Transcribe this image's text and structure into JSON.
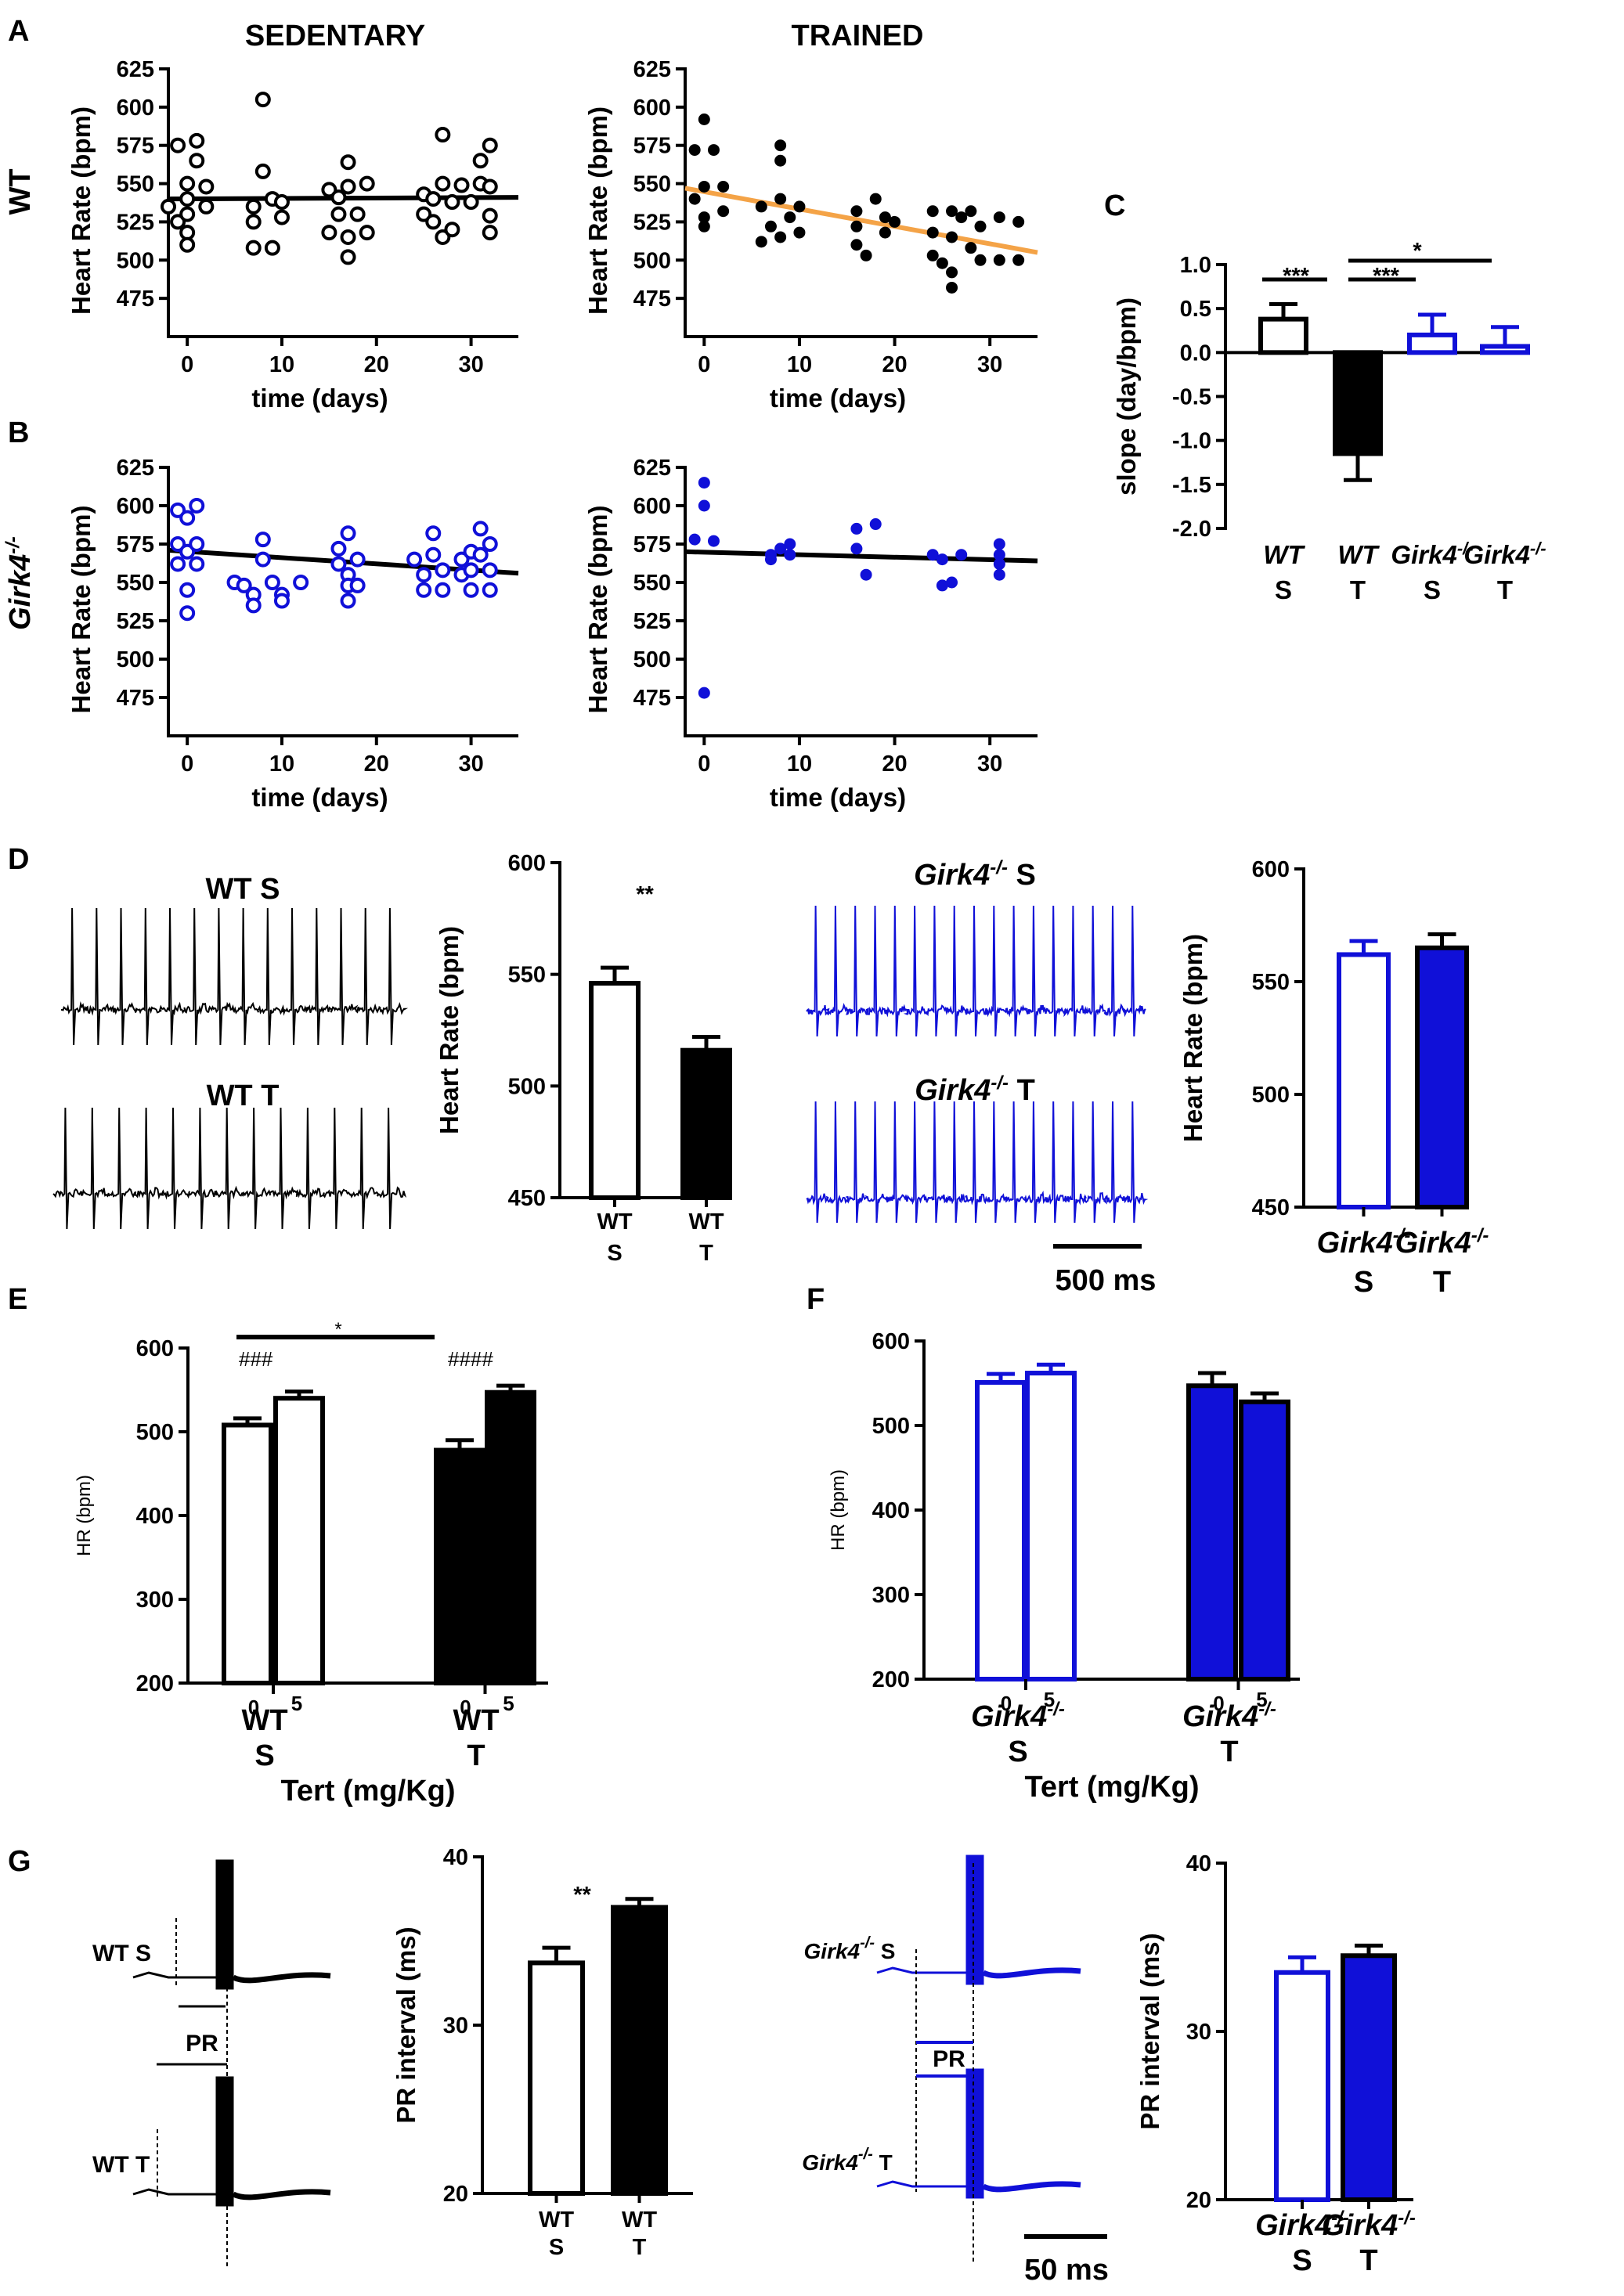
{
  "colors": {
    "black": "#000000",
    "blue": "#1010d8",
    "orange": "#f4a347",
    "white": "#ffffff"
  },
  "panel_labels": [
    "A",
    "B",
    "C",
    "D",
    "E",
    "F",
    "G"
  ],
  "titles": {
    "sedentary": "SEDENTARY",
    "trained": "TRAINED"
  },
  "row_labels": {
    "wt": "WT",
    "girk": "Girk4",
    "girk_sup": "-/-"
  },
  "scatter_ylabel": "Heart Rate (bpm)",
  "scatter_xlabel": "time (days)",
  "hr_label": "Heart Rate (bpm)",
  "slope_label": "slope (day/bpm)",
  "hr_short_label": "HR (bpm)",
  "pr_label": "PR interval (ms)",
  "tert_label": "Tert (mg/Kg)",
  "trace_labels": {
    "wt_s": "WT S",
    "wt_t": "WT T",
    "girk_s": "S",
    "girk_t": "T",
    "pr": "PR"
  },
  "scalebars": {
    "d": "500 ms",
    "g": "50 ms"
  },
  "chart_data": [
    {
      "id": "A-sed",
      "type": "scatter",
      "title": "SEDENTARY",
      "xlabel": "time (days)",
      "ylabel": "Heart Rate (bpm)",
      "xlim": [
        -2,
        35
      ],
      "ylim": [
        450,
        625
      ],
      "xticks": [
        0,
        10,
        20,
        30
      ],
      "yticks": [
        475,
        500,
        525,
        550,
        575,
        600,
        625
      ],
      "marker": "open",
      "color": "#000000",
      "fit": {
        "y0": 540,
        "y1": 541,
        "color": "#000000"
      },
      "points": [
        [
          -2,
          535
        ],
        [
          -1,
          575
        ],
        [
          -1,
          525
        ],
        [
          0,
          550
        ],
        [
          0,
          540
        ],
        [
          0,
          530
        ],
        [
          0,
          518
        ],
        [
          0,
          510
        ],
        [
          1,
          578
        ],
        [
          1,
          565
        ],
        [
          2,
          548
        ],
        [
          2,
          535
        ],
        [
          7,
          535
        ],
        [
          7,
          525
        ],
        [
          7,
          508
        ],
        [
          8,
          605
        ],
        [
          8,
          558
        ],
        [
          9,
          540
        ],
        [
          9,
          508
        ],
        [
          10,
          538
        ],
        [
          10,
          528
        ],
        [
          15,
          546
        ],
        [
          15,
          518
        ],
        [
          16,
          541
        ],
        [
          16,
          530
        ],
        [
          17,
          564
        ],
        [
          17,
          548
        ],
        [
          17,
          515
        ],
        [
          17,
          502
        ],
        [
          18,
          530
        ],
        [
          19,
          550
        ],
        [
          19,
          518
        ],
        [
          25,
          543
        ],
        [
          25,
          530
        ],
        [
          26,
          540
        ],
        [
          26,
          525
        ],
        [
          27,
          582
        ],
        [
          27,
          550
        ],
        [
          27,
          515
        ],
        [
          28,
          538
        ],
        [
          28,
          520
        ],
        [
          29,
          549
        ],
        [
          30,
          538
        ],
        [
          31,
          565
        ],
        [
          31,
          550
        ],
        [
          32,
          575
        ],
        [
          32,
          548
        ],
        [
          32,
          529
        ],
        [
          32,
          518
        ]
      ]
    },
    {
      "id": "A-trn",
      "type": "scatter",
      "title": "TRAINED",
      "xlabel": "time (days)",
      "ylabel": "Heart Rate (bpm)",
      "xlim": [
        -2,
        35
      ],
      "ylim": [
        450,
        625
      ],
      "xticks": [
        0,
        10,
        20,
        30
      ],
      "yticks": [
        475,
        500,
        525,
        550,
        575,
        600,
        625
      ],
      "marker": "filled",
      "color": "#000000",
      "fit": {
        "y0": 547,
        "y1": 505,
        "color": "#f4a347"
      },
      "points": [
        [
          -1,
          540
        ],
        [
          -1,
          572
        ],
        [
          0,
          592
        ],
        [
          0,
          548
        ],
        [
          0,
          528
        ],
        [
          0,
          522
        ],
        [
          1,
          572
        ],
        [
          2,
          548
        ],
        [
          2,
          532
        ],
        [
          6,
          535
        ],
        [
          6,
          512
        ],
        [
          7,
          522
        ],
        [
          8,
          575
        ],
        [
          8,
          565
        ],
        [
          8,
          540
        ],
        [
          8,
          515
        ],
        [
          9,
          528
        ],
        [
          10,
          535
        ],
        [
          10,
          518
        ],
        [
          16,
          532
        ],
        [
          16,
          522
        ],
        [
          16,
          510
        ],
        [
          17,
          503
        ],
        [
          18,
          540
        ],
        [
          19,
          528
        ],
        [
          19,
          518
        ],
        [
          20,
          525
        ],
        [
          24,
          532
        ],
        [
          24,
          518
        ],
        [
          24,
          503
        ],
        [
          25,
          498
        ],
        [
          26,
          532
        ],
        [
          26,
          515
        ],
        [
          26,
          492
        ],
        [
          26,
          482
        ],
        [
          27,
          528
        ],
        [
          28,
          532
        ],
        [
          28,
          508
        ],
        [
          29,
          522
        ],
        [
          29,
          500
        ],
        [
          31,
          528
        ],
        [
          31,
          500
        ],
        [
          33,
          525
        ],
        [
          33,
          500
        ]
      ]
    },
    {
      "id": "B-sed",
      "type": "scatter",
      "xlabel": "time (days)",
      "ylabel": "Heart Rate (bpm)",
      "xlim": [
        -2,
        35
      ],
      "ylim": [
        450,
        625
      ],
      "xticks": [
        0,
        10,
        20,
        30
      ],
      "yticks": [
        475,
        500,
        525,
        550,
        575,
        600,
        625
      ],
      "marker": "open",
      "color": "#1010d8",
      "fit": {
        "y0": 571,
        "y1": 556,
        "color": "#000000"
      },
      "points": [
        [
          -1,
          597
        ],
        [
          -1,
          575
        ],
        [
          -1,
          562
        ],
        [
          0,
          592
        ],
        [
          0,
          570
        ],
        [
          0,
          545
        ],
        [
          0,
          530
        ],
        [
          1,
          600
        ],
        [
          1,
          575
        ],
        [
          1,
          562
        ],
        [
          5,
          550
        ],
        [
          6,
          548
        ],
        [
          7,
          542
        ],
        [
          7,
          535
        ],
        [
          8,
          578
        ],
        [
          8,
          565
        ],
        [
          9,
          550
        ],
        [
          10,
          542
        ],
        [
          10,
          538
        ],
        [
          12,
          550
        ],
        [
          16,
          572
        ],
        [
          16,
          562
        ],
        [
          17,
          582
        ],
        [
          17,
          555
        ],
        [
          17,
          548
        ],
        [
          17,
          538
        ],
        [
          18,
          565
        ],
        [
          18,
          548
        ],
        [
          24,
          565
        ],
        [
          25,
          555
        ],
        [
          25,
          545
        ],
        [
          26,
          582
        ],
        [
          26,
          568
        ],
        [
          27,
          558
        ],
        [
          27,
          545
        ],
        [
          29,
          565
        ],
        [
          29,
          555
        ],
        [
          30,
          570
        ],
        [
          30,
          558
        ],
        [
          30,
          545
        ],
        [
          31,
          585
        ],
        [
          31,
          568
        ],
        [
          32,
          575
        ],
        [
          32,
          558
        ],
        [
          32,
          545
        ]
      ]
    },
    {
      "id": "B-trn",
      "type": "scatter",
      "xlabel": "time (days)",
      "ylabel": "Heart Rate (bpm)",
      "xlim": [
        -2,
        35
      ],
      "ylim": [
        450,
        625
      ],
      "xticks": [
        0,
        10,
        20,
        30
      ],
      "yticks": [
        475,
        500,
        525,
        550,
        575,
        600,
        625
      ],
      "marker": "filled",
      "color": "#1010d8",
      "fit": {
        "y0": 570,
        "y1": 564,
        "color": "#000000"
      },
      "points": [
        [
          -1,
          578
        ],
        [
          0,
          615
        ],
        [
          0,
          600
        ],
        [
          0,
          478
        ],
        [
          1,
          577
        ],
        [
          7,
          568
        ],
        [
          7,
          565
        ],
        [
          8,
          572
        ],
        [
          9,
          575
        ],
        [
          9,
          568
        ],
        [
          16,
          585
        ],
        [
          16,
          572
        ],
        [
          17,
          555
        ],
        [
          18,
          588
        ],
        [
          24,
          568
        ],
        [
          25,
          548
        ],
        [
          25,
          565
        ],
        [
          26,
          550
        ],
        [
          27,
          568
        ],
        [
          31,
          575
        ],
        [
          31,
          568
        ],
        [
          31,
          562
        ],
        [
          31,
          555
        ]
      ]
    },
    {
      "id": "C",
      "type": "bar",
      "ylabel": "slope (day/bpm)",
      "ylim": [
        -2.0,
        1.0
      ],
      "yticks": [
        1.0,
        0.5,
        0.0,
        -0.5,
        -1.0,
        -1.5,
        -2.0
      ],
      "categories": [
        [
          "WT",
          "S"
        ],
        [
          "WT",
          "T"
        ],
        [
          "Girk4",
          "S"
        ],
        [
          "Girk4",
          "T"
        ]
      ],
      "values": [
        0.38,
        -1.15,
        0.2,
        0.07
      ],
      "errors": [
        0.17,
        0.3,
        0.23,
        0.22
      ],
      "fills": [
        "#ffffff",
        "#000000",
        "#ffffff",
        "#ffffff"
      ],
      "strokes": [
        "#000000",
        "#000000",
        "#1010d8",
        "#1010d8"
      ],
      "significance": [
        {
          "from": 0,
          "to": 1,
          "label": "***"
        },
        {
          "from": 1,
          "to": 2,
          "label": "***"
        },
        {
          "from": 1,
          "to": 3,
          "label": "*"
        }
      ]
    },
    {
      "id": "D-wt",
      "type": "bar",
      "ylabel": "Heart Rate (bpm)",
      "ylim": [
        450,
        600
      ],
      "yticks": [
        450,
        500,
        550,
        600
      ],
      "categories": [
        [
          "WT",
          "S"
        ],
        [
          "WT",
          "T"
        ]
      ],
      "values": [
        546,
        516
      ],
      "errors": [
        7,
        6
      ],
      "fills": [
        "#ffffff",
        "#000000"
      ],
      "strokes": [
        "#000000",
        "#000000"
      ],
      "annotation": "**"
    },
    {
      "id": "D-girk",
      "type": "bar",
      "ylabel": "Heart Rate (bpm)",
      "ylim": [
        450,
        600
      ],
      "yticks": [
        450,
        500,
        550,
        600
      ],
      "categories": [
        [
          "Girk4",
          "S"
        ],
        [
          "Girk4",
          "T"
        ]
      ],
      "values": [
        562,
        565
      ],
      "errors": [
        6,
        6
      ],
      "fills": [
        "#ffffff",
        "#1010d8"
      ],
      "strokes": [
        "#1010d8",
        "#000000"
      ]
    },
    {
      "id": "E",
      "type": "bar",
      "ylabel": "HR (bpm)",
      "xlabel": "Tert (mg/Kg)",
      "ylim": [
        200,
        600
      ],
      "yticks": [
        200,
        300,
        400,
        500,
        600
      ],
      "groups": [
        [
          "WT",
          "S"
        ],
        [
          "WT",
          "T"
        ]
      ],
      "doses": [
        "0",
        "5"
      ],
      "values": [
        508,
        540,
        478,
        547
      ],
      "errors": [
        8,
        8,
        12,
        8
      ],
      "fills": [
        "#ffffff",
        "#ffffff",
        "#000000",
        "#000000"
      ],
      "strokes": [
        "#000000",
        "#000000",
        "#000000",
        "#000000"
      ],
      "annotations": [
        "###",
        "####",
        "*"
      ]
    },
    {
      "id": "F",
      "type": "bar",
      "ylabel": "HR (bpm)",
      "xlabel": "Tert (mg/Kg)",
      "ylim": [
        200,
        600
      ],
      "yticks": [
        200,
        300,
        400,
        500,
        600
      ],
      "groups": [
        [
          "Girk4",
          "S"
        ],
        [
          "Girk4",
          "T"
        ]
      ],
      "doses": [
        "0",
        "5"
      ],
      "values": [
        551,
        562,
        547,
        528
      ],
      "errors": [
        10,
        10,
        15,
        10
      ],
      "fills": [
        "#ffffff",
        "#ffffff",
        "#1010d8",
        "#1010d8"
      ],
      "strokes": [
        "#1010d8",
        "#1010d8",
        "#000000",
        "#000000"
      ]
    },
    {
      "id": "G-wt",
      "type": "bar",
      "ylabel": "PR interval (ms)",
      "ylim": [
        20,
        40
      ],
      "yticks": [
        20,
        30,
        40
      ],
      "categories": [
        [
          "WT",
          "S"
        ],
        [
          "WT",
          "T"
        ]
      ],
      "values": [
        33.7,
        37
      ],
      "errors": [
        0.9,
        0.5
      ],
      "fills": [
        "#ffffff",
        "#000000"
      ],
      "strokes": [
        "#000000",
        "#000000"
      ],
      "annotation": "**"
    },
    {
      "id": "G-girk",
      "type": "bar",
      "ylabel": "PR interval (ms)",
      "ylim": [
        20,
        40
      ],
      "yticks": [
        20,
        30,
        40
      ],
      "categories": [
        [
          "Girk4",
          "S"
        ],
        [
          "Girk4",
          "T"
        ]
      ],
      "values": [
        33.5,
        34.5
      ],
      "errors": [
        0.9,
        0.6
      ],
      "fills": [
        "#ffffff",
        "#1010d8"
      ],
      "strokes": [
        "#1010d8",
        "#000000"
      ]
    }
  ]
}
